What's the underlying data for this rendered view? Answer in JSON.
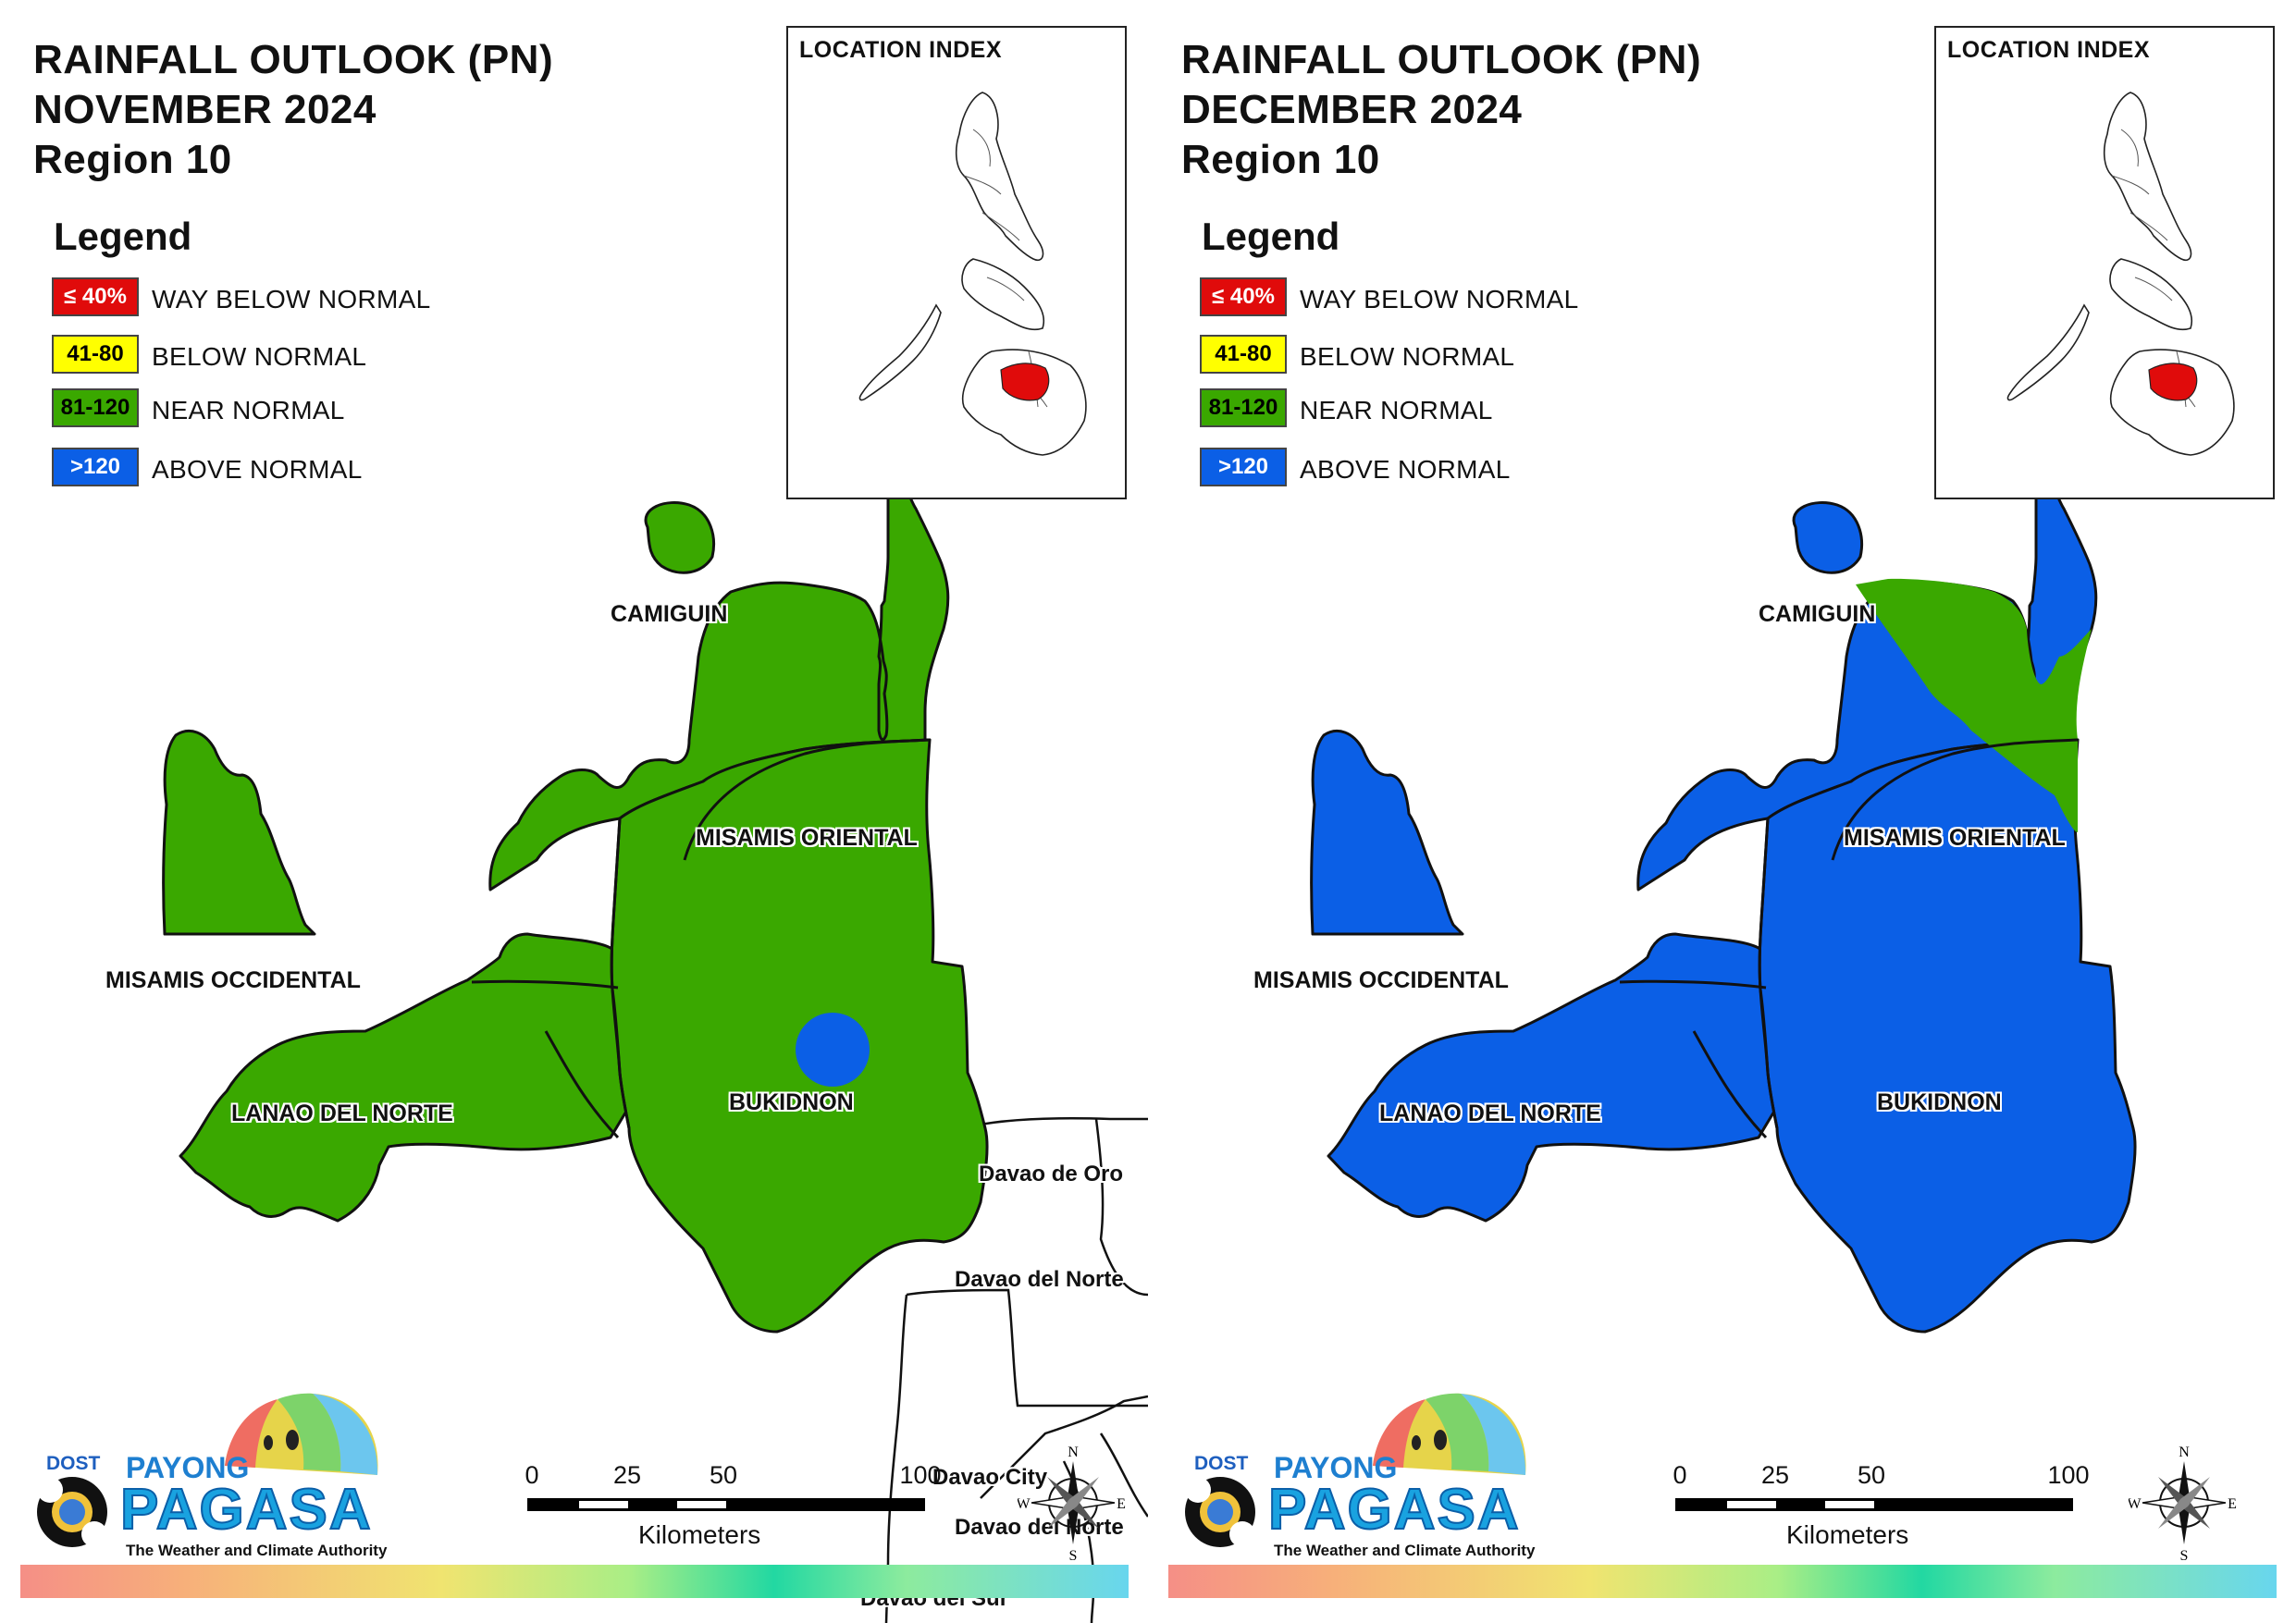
{
  "colors": {
    "way_below": "#e00b0b",
    "below": "#ffff00",
    "near": "#3aa800",
    "above": "#0b5fe6",
    "neighbor_fill": "#ffffff",
    "border": "#111111",
    "loc_highlight": "#e00b0b"
  },
  "legend": {
    "title": "Legend",
    "items": [
      {
        "code": "≤ 40%",
        "label": "WAY BELOW NORMAL",
        "color_key": "way_below",
        "text_color": "#ffffff"
      },
      {
        "code": "41-80",
        "label": "BELOW NORMAL",
        "color_key": "below",
        "text_color": "#000000"
      },
      {
        "code": "81-120",
        "label": "NEAR NORMAL",
        "color_key": "near",
        "text_color": "#000000"
      },
      {
        "code": ">120",
        "label": "ABOVE NORMAL",
        "color_key": "above",
        "text_color": "#ffffff"
      }
    ]
  },
  "location_index": {
    "title": "LOCATION INDEX"
  },
  "scale": {
    "ticks": [
      "0",
      "25",
      "50",
      "100"
    ],
    "unit": "Kilometers"
  },
  "compass": {
    "n": "N",
    "s": "S",
    "e": "E",
    "w": "W"
  },
  "logo": {
    "dost": "DOST",
    "payong": "PAYONG",
    "pagasa": "PAGASA",
    "tagline": "The Weather and Climate Authority"
  },
  "provinces": {
    "camiguin": "CAMIGUIN",
    "misamis_oriental": "MISAMIS ORIENTAL",
    "misamis_occidental": "MISAMIS OCCIDENTAL",
    "lanao_del_norte": "LANAO DEL NORTE",
    "bukidnon": "BUKIDNON"
  },
  "neighbors": {
    "davao_de_oro": "Davao de Oro",
    "davao_del_norte": "Davao del Norte",
    "davao_city": "Davao City",
    "davao_del_norte_2": "Davao del Norte",
    "davao_del_sur": "Davao del Sur"
  },
  "panels": [
    {
      "id": "november",
      "title_line1": "RAINFALL OUTLOOK (PN)",
      "title_line2": "NOVEMBER 2024",
      "title_line3": "Region 10",
      "province_category": {
        "camiguin": "near",
        "misamis_oriental": "near",
        "misamis_occidental": "near",
        "lanao_del_norte": "near",
        "bukidnon": "near"
      },
      "bukidnon_spot_category": "above",
      "misamis_oriental_strip_category": "near",
      "show_neighbors": true
    },
    {
      "id": "december",
      "title_line1": "RAINFALL OUTLOOK (PN)",
      "title_line2": "DECEMBER 2024",
      "title_line3": "Region 10",
      "province_category": {
        "camiguin": "above",
        "misamis_oriental": "above",
        "misamis_occidental": "above",
        "lanao_del_norte": "above",
        "bukidnon": "above"
      },
      "bukidnon_spot_category": "above",
      "misamis_oriental_strip_category": "near",
      "show_neighbors": false
    }
  ]
}
